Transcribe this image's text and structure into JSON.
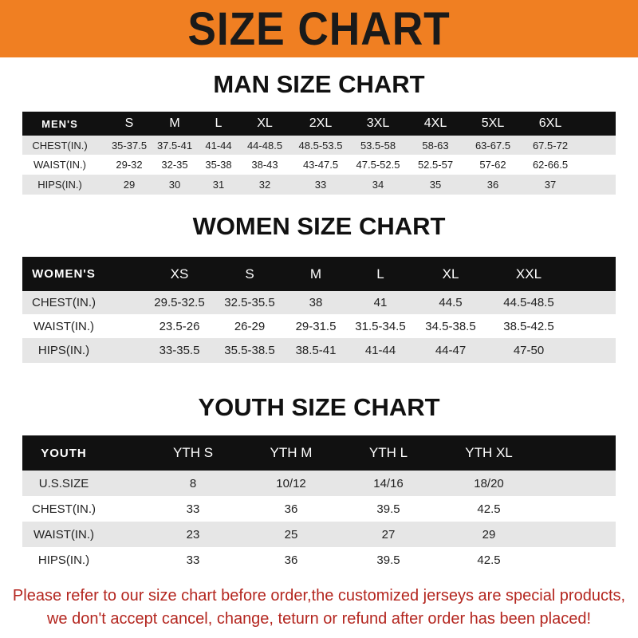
{
  "banner": "SIZE CHART",
  "men": {
    "title": "MAN SIZE CHART",
    "header": [
      "MEN'S",
      "S",
      "M",
      "L",
      "XL",
      "2XL",
      "3XL",
      "4XL",
      "5XL",
      "6XL"
    ],
    "rows": [
      [
        "CHEST(IN.)",
        "35-37.5",
        "37.5-41",
        "41-44",
        "44-48.5",
        "48.5-53.5",
        "53.5-58",
        "58-63",
        "63-67.5",
        "67.5-72"
      ],
      [
        "WAIST(IN.)",
        "29-32",
        "32-35",
        "35-38",
        "38-43",
        "43-47.5",
        "47.5-52.5",
        "52.5-57",
        "57-62",
        "62-66.5"
      ],
      [
        "HIPS(IN.)",
        "29",
        "30",
        "31",
        "32",
        "33",
        "34",
        "35",
        "36",
        "37"
      ]
    ]
  },
  "women": {
    "title": "WOMEN SIZE CHART",
    "header": [
      "WOMEN'S",
      "XS",
      "S",
      "M",
      "L",
      "XL",
      "XXL"
    ],
    "rows": [
      [
        "CHEST(IN.)",
        "29.5-32.5",
        "32.5-35.5",
        "38",
        "41",
        "44.5",
        "44.5-48.5"
      ],
      [
        "WAIST(IN.)",
        "23.5-26",
        "26-29",
        "29-31.5",
        "31.5-34.5",
        "34.5-38.5",
        "38.5-42.5"
      ],
      [
        "HIPS(IN.)",
        "33-35.5",
        "35.5-38.5",
        "38.5-41",
        "41-44",
        "44-47",
        "47-50"
      ]
    ]
  },
  "youth": {
    "title": "YOUTH SIZE CHART",
    "header": [
      "YOUTH",
      "YTH S",
      "YTH M",
      "YTH L",
      "YTH XL"
    ],
    "rows": [
      [
        "U.S.SIZE",
        "8",
        "10/12",
        "14/16",
        "18/20"
      ],
      [
        "CHEST(IN.)",
        "33",
        "36",
        "39.5",
        "42.5"
      ],
      [
        "WAIST(IN.)",
        "23",
        "25",
        "27",
        "29"
      ],
      [
        "HIPS(IN.)",
        "33",
        "36",
        "39.5",
        "42.5"
      ]
    ]
  },
  "notice": {
    "line1": "Please refer to our size chart before order,the customized jerseys are special products,",
    "line2": "we don't accept cancel, change, teturn or refund after order has been placed!"
  },
  "colors": {
    "banner": "#f07f22",
    "header_row": "#111111",
    "stripe": "#e6e6e6",
    "notice": "#b4261f"
  }
}
